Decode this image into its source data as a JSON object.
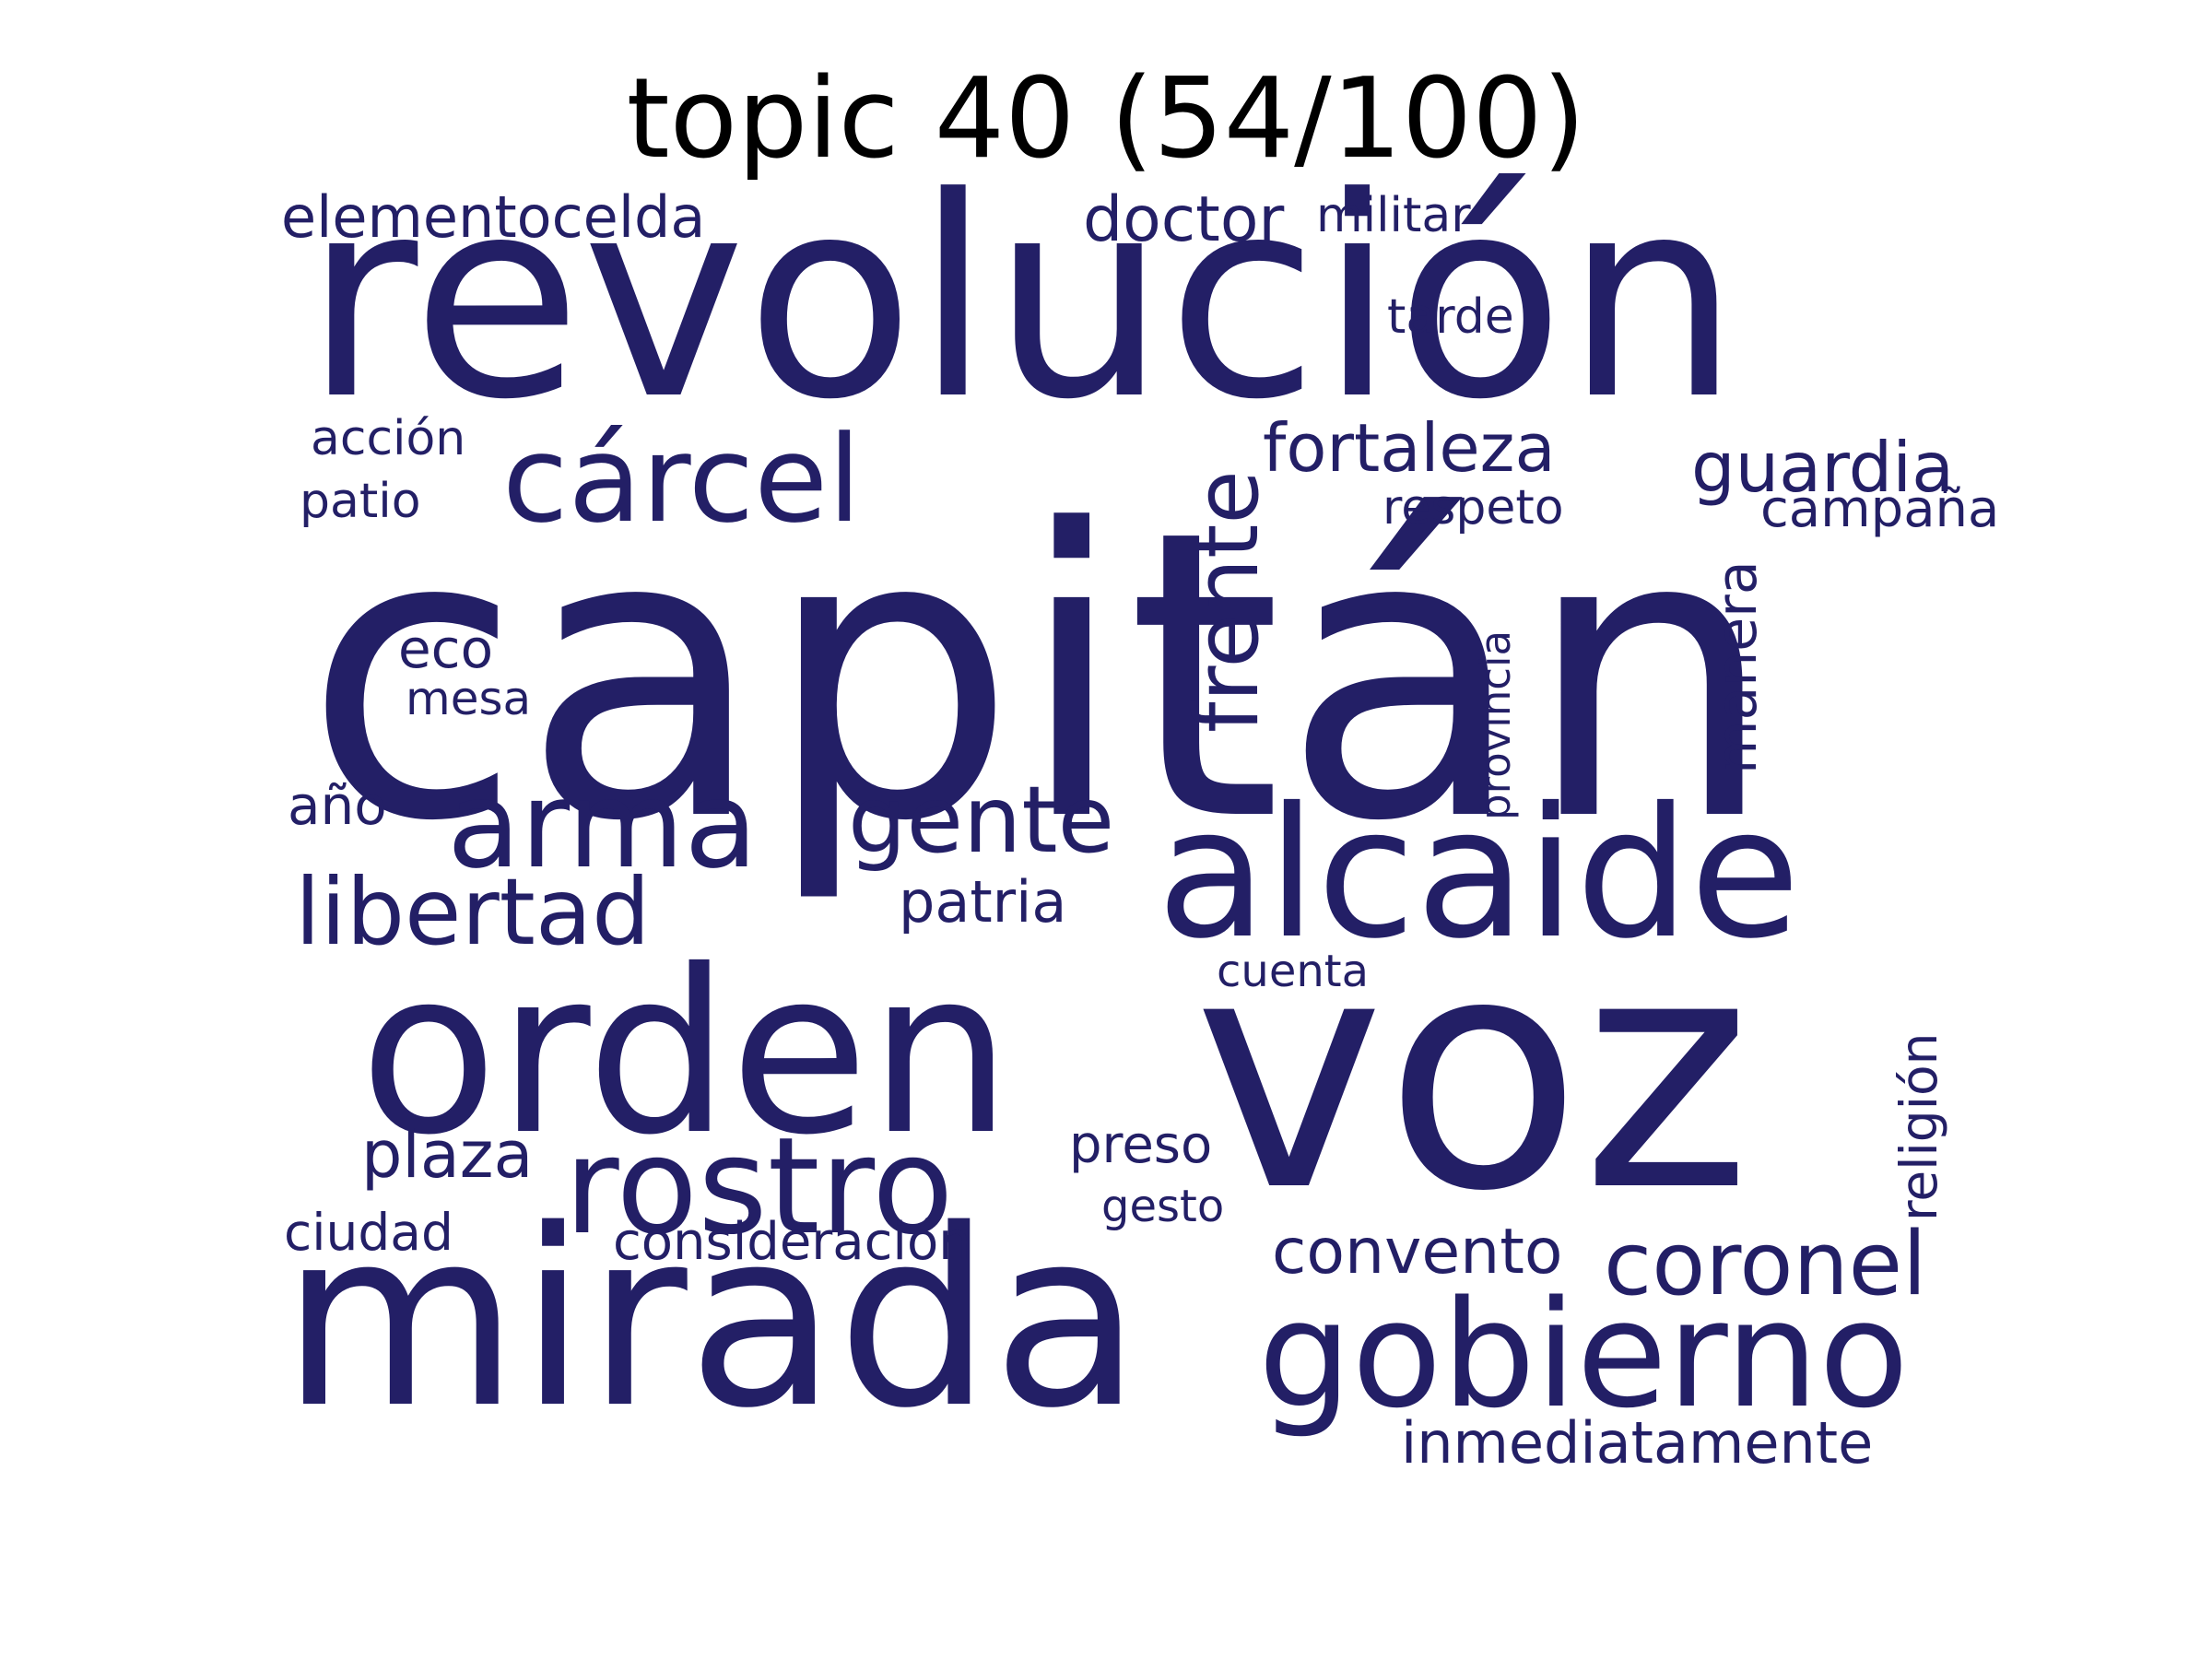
{
  "title": "topic 40 (54/100)",
  "word_color": "#231f66",
  "words": {
    "capitan": "capitán",
    "revolucion": "revolución",
    "voz": "voz",
    "mirada": "mirada",
    "orden": "orden",
    "alcaide": "alcaide",
    "gobierno": "gobierno",
    "rostro": "rostro",
    "carcel": "cárcel",
    "arma": "arma",
    "gente": "gente",
    "libertad": "libertad",
    "coronel": "coronel",
    "frente": "frente",
    "guardia": "guardia",
    "fortaleza": "fortaleza",
    "convento": "convento",
    "doctor": "doctor",
    "elementocelda": "elementocelda",
    "militar": "militar",
    "inmediatamente": "inmediatamente",
    "patria": "patria",
    "plaza": "plaza",
    "manera": "manera",
    "consideracion": "consideración",
    "campana": "campaña",
    "preso": "preso",
    "ciudad": "ciudad",
    "religion": "religión",
    "respeto": "respeto",
    "tarde": "tarde",
    "accion": "acción",
    "patio": "patio",
    "eco": "eco",
    "mesa": "mesa",
    "ano": "año",
    "provincia": "provincia",
    "cuenta": "cuenta",
    "gesto": "gesto"
  }
}
